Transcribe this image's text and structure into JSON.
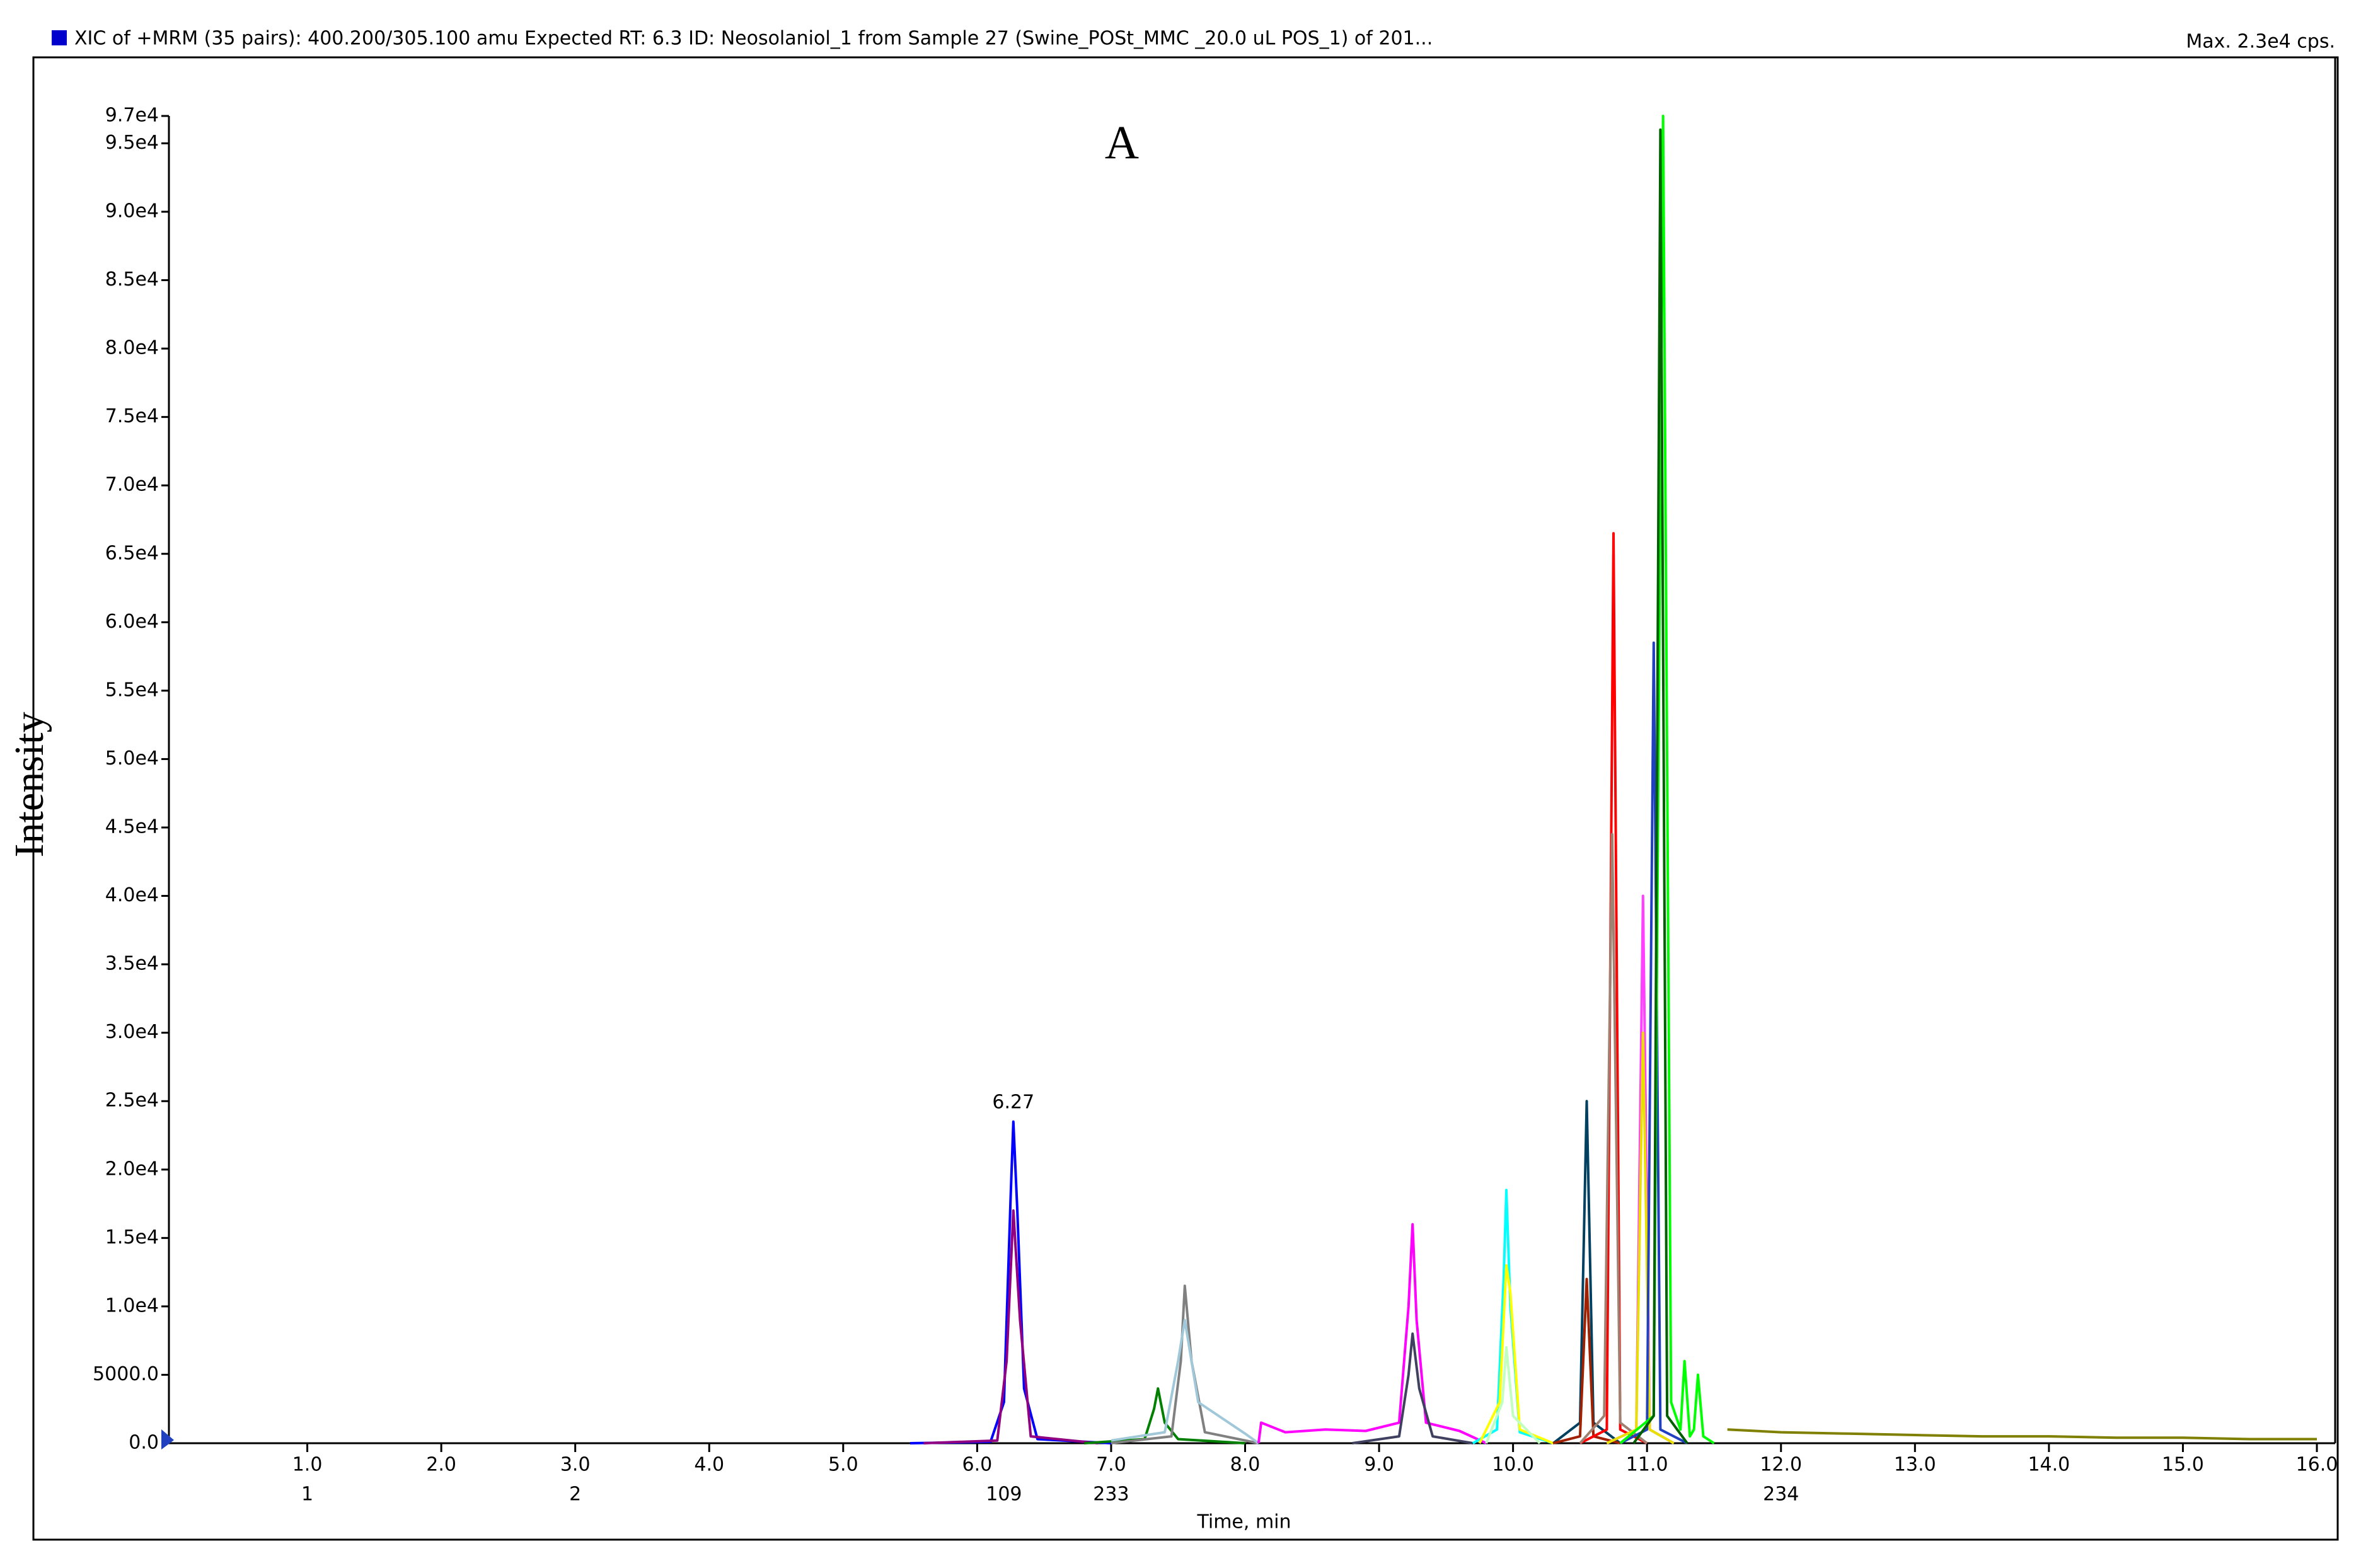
{
  "chart_data": {
    "type": "line",
    "title": "XIC of +MRM (35 pairs): 400.200/305.100 amu Expected RT: 6.3 ID: Neosolaniol_1 from Sample 27 (Swine_POSt_MMC _20.0 uL POS_1) of 201...",
    "max_label": "Max. 2.3e4 cps.",
    "panel_label": "A",
    "y_label": "Intensity",
    "x_label": "Time, min",
    "peak_label": "6.27",
    "xlim": [
      0,
      16
    ],
    "ylim": [
      0,
      97000
    ],
    "xticks": [
      {
        "value": 1,
        "label": "1.0"
      },
      {
        "value": 2,
        "label": "2.0"
      },
      {
        "value": 3,
        "label": "3.0"
      },
      {
        "value": 4,
        "label": "4.0"
      },
      {
        "value": 5,
        "label": "5.0"
      },
      {
        "value": 6,
        "label": "6.0"
      },
      {
        "value": 7,
        "label": "7.0"
      },
      {
        "value": 8,
        "label": "8.0"
      },
      {
        "value": 9,
        "label": "9.0"
      },
      {
        "value": 10,
        "label": "10.0"
      },
      {
        "value": 11,
        "label": "11.0"
      },
      {
        "value": 12,
        "label": "12.0"
      },
      {
        "value": 13,
        "label": "13.0"
      },
      {
        "value": 14,
        "label": "14.0"
      },
      {
        "value": 15,
        "label": "15.0"
      },
      {
        "value": 16,
        "label": "16.0"
      }
    ],
    "scan_ticks": [
      {
        "value": 1,
        "label": "1"
      },
      {
        "value": 3,
        "label": "2"
      },
      {
        "value": 6.2,
        "label": "109"
      },
      {
        "value": 7,
        "label": "233"
      },
      {
        "value": 12,
        "label": "234"
      }
    ],
    "yticks": [
      {
        "value": 0,
        "label": "0.0"
      },
      {
        "value": 5000,
        "label": "5000.0"
      },
      {
        "value": 10000,
        "label": "1.0e4"
      },
      {
        "value": 15000,
        "label": "1.5e4"
      },
      {
        "value": 20000,
        "label": "2.0e4"
      },
      {
        "value": 25000,
        "label": "2.5e4"
      },
      {
        "value": 30000,
        "label": "3.0e4"
      },
      {
        "value": 35000,
        "label": "3.5e4"
      },
      {
        "value": 40000,
        "label": "4.0e4"
      },
      {
        "value": 45000,
        "label": "4.5e4"
      },
      {
        "value": 50000,
        "label": "5.0e4"
      },
      {
        "value": 55000,
        "label": "5.5e4"
      },
      {
        "value": 60000,
        "label": "6.0e4"
      },
      {
        "value": 65000,
        "label": "6.5e4"
      },
      {
        "value": 70000,
        "label": "7.0e4"
      },
      {
        "value": 75000,
        "label": "7.5e4"
      },
      {
        "value": 80000,
        "label": "8.0e4"
      },
      {
        "value": 85000,
        "label": "8.5e4"
      },
      {
        "value": 90000,
        "label": "9.0e4"
      },
      {
        "value": 95000,
        "label": "9.5e4"
      },
      {
        "value": 97000,
        "label": "9.7e4"
      }
    ],
    "series": [
      {
        "color": "#0000ff",
        "x": [
          5.5,
          6.1,
          6.2,
          6.25,
          6.27,
          6.3,
          6.35,
          6.45,
          7.0
        ],
        "values": [
          0,
          100,
          3000,
          18000,
          23500,
          17000,
          4000,
          300,
          0
        ]
      },
      {
        "color": "#900080",
        "x": [
          5.6,
          6.15,
          6.22,
          6.27,
          6.32,
          6.4,
          6.9
        ],
        "values": [
          0,
          200,
          6000,
          17000,
          9000,
          500,
          0
        ]
      },
      {
        "color": "#008000",
        "x": [
          6.8,
          7.25,
          7.32,
          7.35,
          7.4,
          7.5,
          8.0
        ],
        "values": [
          0,
          300,
          2500,
          4000,
          1500,
          300,
          0
        ]
      },
      {
        "color": "#808080",
        "x": [
          7.0,
          7.45,
          7.52,
          7.55,
          7.6,
          7.7,
          8.1
        ],
        "values": [
          0,
          500,
          6000,
          11500,
          6000,
          800,
          0
        ]
      },
      {
        "color": "#a0c8d8",
        "x": [
          7.0,
          7.4,
          7.5,
          7.55,
          7.65,
          8.0,
          8.1
        ],
        "values": [
          200,
          800,
          6000,
          9000,
          3000,
          700,
          0
        ]
      },
      {
        "color": "#ff00ff",
        "x": [
          8.1,
          8.12,
          8.3,
          8.6,
          8.9,
          9.15,
          9.22,
          9.25,
          9.28,
          9.35,
          9.6,
          9.8
        ],
        "values": [
          0,
          1500,
          800,
          1000,
          900,
          1500,
          10000,
          16000,
          9000,
          1500,
          900,
          0
        ]
      },
      {
        "color": "#404060",
        "x": [
          8.8,
          9.15,
          9.22,
          9.25,
          9.3,
          9.4,
          9.7
        ],
        "values": [
          0,
          500,
          5000,
          8000,
          4000,
          500,
          0
        ]
      },
      {
        "color": "#00ffff",
        "x": [
          9.7,
          9.88,
          9.93,
          9.95,
          9.98,
          10.05,
          10.3
        ],
        "values": [
          0,
          1000,
          12000,
          18500,
          10000,
          800,
          0
        ]
      },
      {
        "color": "#ffff00",
        "x": [
          9.75,
          9.9,
          9.95,
          9.98,
          10.05,
          10.3
        ],
        "values": [
          0,
          3000,
          13000,
          11000,
          1000,
          0
        ]
      },
      {
        "color": "#c0ffc0",
        "x": [
          9.8,
          9.92,
          9.95,
          10.0,
          10.2
        ],
        "values": [
          0,
          3000,
          7000,
          2000,
          0
        ]
      },
      {
        "color": "#004060",
        "x": [
          10.3,
          10.5,
          10.55,
          10.6,
          10.8
        ],
        "values": [
          0,
          1500,
          25000,
          1500,
          0
        ]
      },
      {
        "color": "#a02000",
        "x": [
          10.3,
          10.5,
          10.55,
          10.6,
          10.8
        ],
        "values": [
          0,
          500,
          12000,
          500,
          0
        ]
      },
      {
        "color": "#ff0000",
        "x": [
          10.5,
          10.7,
          10.75,
          10.8,
          11.0
        ],
        "values": [
          0,
          1000,
          66500,
          1000,
          0
        ]
      },
      {
        "color": "#a08070",
        "x": [
          10.5,
          10.68,
          10.74,
          10.8,
          11.0
        ],
        "values": [
          0,
          2000,
          44500,
          1500,
          0
        ]
      },
      {
        "color": "#ff40ff",
        "x": [
          10.7,
          10.92,
          10.97,
          11.02,
          11.2
        ],
        "values": [
          0,
          1000,
          40000,
          1000,
          0
        ]
      },
      {
        "color": "#e8e000",
        "x": [
          10.7,
          10.92,
          10.97,
          11.02,
          11.2
        ],
        "values": [
          0,
          1000,
          30000,
          1000,
          0
        ]
      },
      {
        "color": "#2040c0",
        "x": [
          10.8,
          11.0,
          11.05,
          11.1,
          11.3
        ],
        "values": [
          0,
          1000,
          58500,
          1000,
          0
        ]
      },
      {
        "color": "#00ff00",
        "x": [
          10.8,
          11.05,
          11.12,
          11.18,
          11.25,
          11.28,
          11.32,
          11.35,
          11.38,
          11.42,
          11.5
        ],
        "values": [
          0,
          2000,
          97000,
          3000,
          1000,
          6000,
          500,
          1000,
          5000,
          500,
          0
        ]
      },
      {
        "color": "#006000",
        "x": [
          10.9,
          11.05,
          11.1,
          11.15,
          11.3
        ],
        "values": [
          0,
          2000,
          96000,
          2000,
          0
        ]
      },
      {
        "color": "#808000",
        "x": [
          11.6,
          12,
          12.5,
          13,
          13.5,
          14,
          14.5,
          15,
          15.5,
          16
        ],
        "values": [
          1000,
          800,
          700,
          600,
          500,
          500,
          400,
          400,
          300,
          300
        ]
      }
    ]
  }
}
